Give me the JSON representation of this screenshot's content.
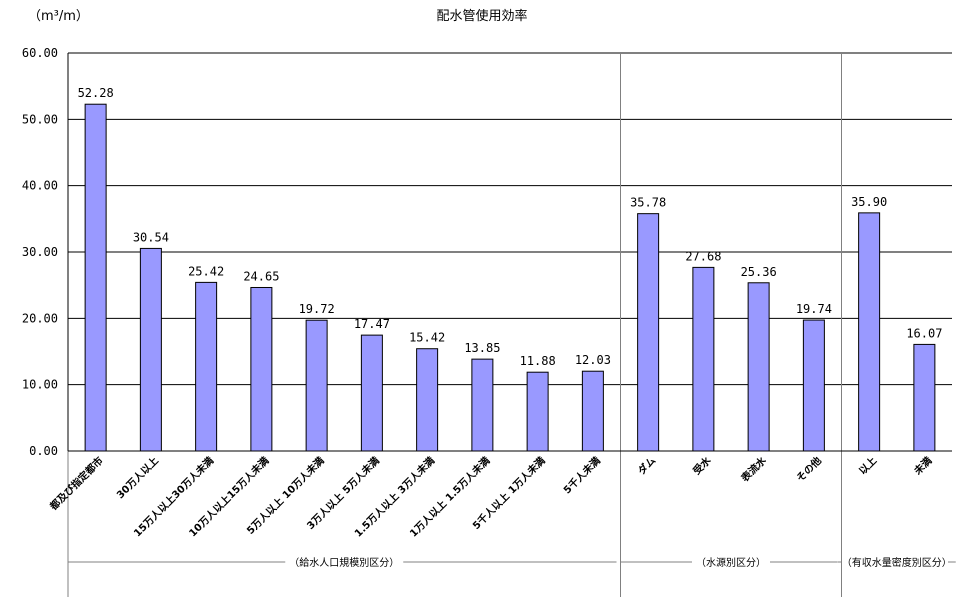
{
  "chart_data": {
    "type": "bar",
    "title": "配水管使用効率",
    "unit_label": "（m³/m）",
    "ylim": [
      0,
      60
    ],
    "y_ticks": [
      "0.00",
      "10.00",
      "20.00",
      "30.00",
      "40.00",
      "50.00",
      "60.00"
    ],
    "grid": true,
    "bar_color": "#9999ff",
    "categories": [
      "都及び指定都市",
      "30万人以上",
      "15万人以上30万人未満",
      "10万人以上15万人未満",
      "5万人以上 10万人未満",
      "3万人以上 5万人未満",
      "1.5万人以上 3万人未満",
      "1万人以上 1.5万人未満",
      "5千人以上 1万人未満",
      "5千人未満",
      "ダム",
      "受水",
      "表流水",
      "その他",
      "以上",
      "未満"
    ],
    "values": [
      52.28,
      30.54,
      25.42,
      24.65,
      19.72,
      17.47,
      15.42,
      13.85,
      11.88,
      12.03,
      35.78,
      27.68,
      25.36,
      19.74,
      35.9,
      16.07
    ],
    "value_labels": [
      "52.28",
      "30.54",
      "25.42",
      "24.65",
      "19.72",
      "17.47",
      "15.42",
      "13.85",
      "11.88",
      "12.03",
      "35.78",
      "27.68",
      "25.36",
      "19.74",
      "35.90",
      "16.07"
    ],
    "groups": [
      {
        "label": "（給水人口規模別区分）",
        "start": 0,
        "end": 9
      },
      {
        "label": "（水源別区分）",
        "start": 10,
        "end": 13
      },
      {
        "label": "（有収水量密度別区分）",
        "start": 14,
        "end": 15
      }
    ]
  }
}
